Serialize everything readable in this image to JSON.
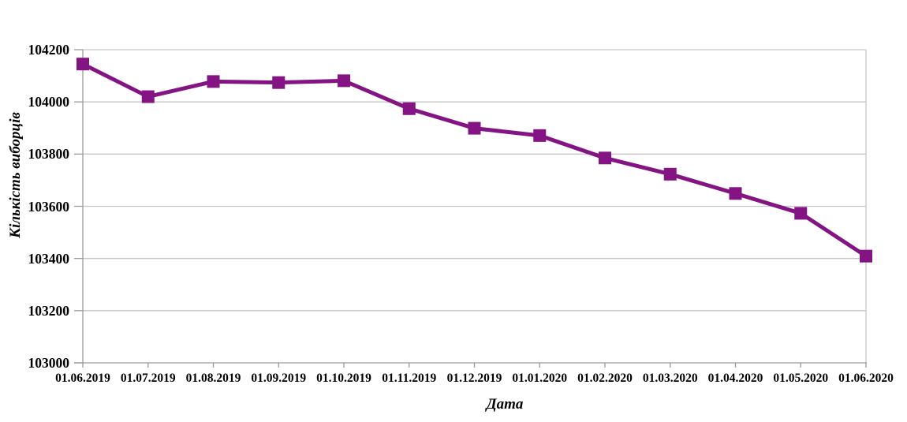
{
  "chart_data": {
    "type": "line",
    "title": "",
    "xlabel": "Дата",
    "ylabel": "Кількість виборців",
    "categories": [
      "01.06.2019",
      "01.07.2019",
      "01.08.2019",
      "01.09.2019",
      "01.10.2019",
      "01.11.2019",
      "01.12.2019",
      "01.01.2020",
      "01.02.2020",
      "01.03.2020",
      "01.04.2020",
      "01.05.2020",
      "01.06.2020"
    ],
    "series": [
      {
        "name": "Кількість виборців",
        "values": [
          104145,
          104020,
          104078,
          104074,
          104081,
          103974,
          103899,
          103871,
          103785,
          103723,
          103649,
          103573,
          103409
        ]
      }
    ],
    "ylim": [
      103000,
      104200
    ],
    "yticks": [
      103000,
      103200,
      103400,
      103600,
      103800,
      104000,
      104200
    ],
    "grid": "horizontal",
    "legend_position": "none",
    "marker": "square",
    "colors": {
      "series": "#841484",
      "gridline": "#c6c6c6",
      "axis": "#9a9a9a",
      "text": "#000000",
      "background": "#ffffff"
    }
  }
}
